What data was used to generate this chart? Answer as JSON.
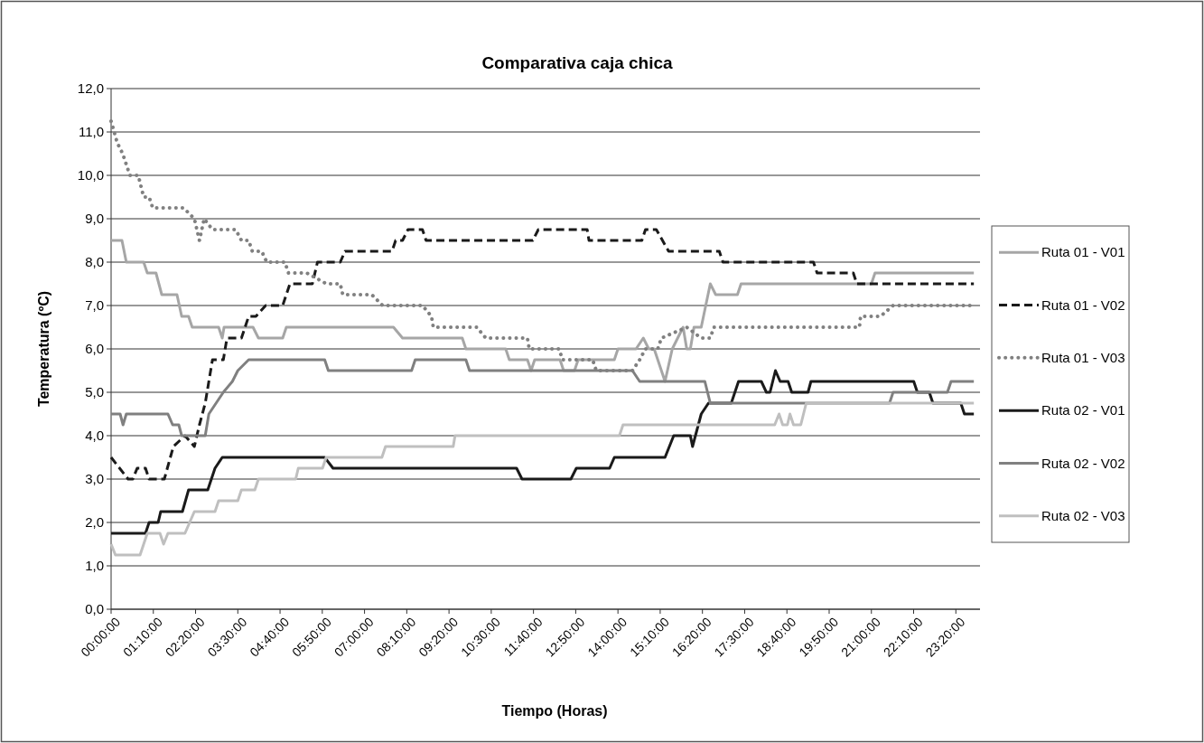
{
  "chart_data": {
    "type": "line",
    "title": "Comparativa caja chica",
    "xlabel": "Tiempo (Horas)",
    "ylabel": "Temperatura (ºC)",
    "xlim": [
      0,
      24
    ],
    "ylim": [
      0,
      12
    ],
    "xticks": [
      {
        "value": 0,
        "label": "00:00:00"
      },
      {
        "value": 1.1667,
        "label": "01:10:00"
      },
      {
        "value": 2.3333,
        "label": "02:20:00"
      },
      {
        "value": 3.5,
        "label": "03:30:00"
      },
      {
        "value": 4.6667,
        "label": "04:40:00"
      },
      {
        "value": 5.8333,
        "label": "05:50:00"
      },
      {
        "value": 7,
        "label": "07:00:00"
      },
      {
        "value": 8.1667,
        "label": "08:10:00"
      },
      {
        "value": 9.3333,
        "label": "09:20:00"
      },
      {
        "value": 10.5,
        "label": "10:30:00"
      },
      {
        "value": 11.6667,
        "label": "11:40:00"
      },
      {
        "value": 12.8333,
        "label": "12:50:00"
      },
      {
        "value": 14,
        "label": "14:00:00"
      },
      {
        "value": 15.1667,
        "label": "15:10:00"
      },
      {
        "value": 16.3333,
        "label": "16:20:00"
      },
      {
        "value": 17.5,
        "label": "17:30:00"
      },
      {
        "value": 18.6667,
        "label": "18:40:00"
      },
      {
        "value": 19.8333,
        "label": "19:50:00"
      },
      {
        "value": 21,
        "label": "21:00:00"
      },
      {
        "value": 22.1667,
        "label": "22:10:00"
      },
      {
        "value": 23.3333,
        "label": "23:20:00"
      }
    ],
    "yticks": [
      {
        "value": 0,
        "label": "0,0"
      },
      {
        "value": 1,
        "label": "1,0"
      },
      {
        "value": 2,
        "label": "2,0"
      },
      {
        "value": 3,
        "label": "3,0"
      },
      {
        "value": 4,
        "label": "4,0"
      },
      {
        "value": 5,
        "label": "5,0"
      },
      {
        "value": 6,
        "label": "6,0"
      },
      {
        "value": 7,
        "label": "7,0"
      },
      {
        "value": 8,
        "label": "8,0"
      },
      {
        "value": 9,
        "label": "9,0"
      },
      {
        "value": 10,
        "label": "10,0"
      },
      {
        "value": 11,
        "label": "11,0"
      },
      {
        "value": 12,
        "label": "12,0"
      }
    ],
    "grid": "y",
    "legend": "right",
    "marker": "none",
    "series": [
      {
        "name": "Ruta 01 - V01",
        "color": "#a6a6a6",
        "line_style": "solid",
        "x": [
          0,
          0.3,
          0.42,
          0.9,
          1.0,
          1.24,
          1.4,
          1.82,
          1.95,
          2.14,
          2.24,
          2.97,
          3.07,
          3.12,
          3.92,
          4.07,
          4.74,
          4.84,
          7.8,
          8.05,
          9.7,
          9.8,
          10.9,
          11.0,
          11.5,
          11.6,
          11.7,
          12.4,
          12.5,
          12.8,
          12.9,
          13.9,
          14.0,
          14.5,
          14.7,
          14.85,
          15.0,
          15.3,
          15.5,
          15.8,
          15.9,
          16.0,
          16.1,
          16.3,
          16.55,
          16.7,
          17.3,
          17.4,
          21.0,
          21.1,
          23.83
        ],
        "values": [
          8.5,
          8.5,
          8.0,
          8.0,
          7.75,
          7.75,
          7.25,
          7.25,
          6.75,
          6.75,
          6.5,
          6.5,
          6.25,
          6.5,
          6.5,
          6.25,
          6.25,
          6.5,
          6.5,
          6.25,
          6.25,
          6.0,
          6.0,
          5.75,
          5.75,
          5.5,
          5.75,
          5.75,
          5.5,
          5.5,
          5.75,
          5.75,
          6.0,
          6.0,
          6.25,
          6.0,
          6.0,
          5.25,
          6.0,
          6.5,
          6.0,
          6.0,
          6.5,
          6.5,
          7.5,
          7.25,
          7.25,
          7.5,
          7.5,
          7.75,
          7.75
        ]
      },
      {
        "name": "Ruta 01 - V02",
        "color": "#1a1a1a",
        "line_style": "dashed",
        "x": [
          0,
          0.47,
          0.6,
          0.72,
          0.95,
          1.05,
          1.47,
          1.72,
          2.04,
          2.3,
          2.44,
          2.6,
          2.8,
          3.1,
          3.2,
          3.6,
          3.8,
          4.0,
          4.27,
          4.74,
          4.94,
          5.56,
          5.7,
          6.33,
          6.46,
          7.76,
          7.86,
          8.05,
          8.2,
          8.6,
          8.7,
          11.65,
          11.8,
          13.15,
          13.2,
          14.66,
          14.76,
          15.06,
          15.4,
          16.8,
          16.9,
          19.4,
          19.5,
          20.5,
          20.6,
          23.83
        ],
        "values": [
          3.5,
          3.0,
          3.0,
          3.25,
          3.25,
          3.0,
          3.0,
          3.75,
          4.0,
          3.75,
          4.25,
          4.75,
          5.75,
          5.75,
          6.25,
          6.25,
          6.75,
          6.75,
          7.0,
          7.0,
          7.5,
          7.5,
          8.0,
          8.0,
          8.25,
          8.25,
          8.5,
          8.5,
          8.75,
          8.75,
          8.5,
          8.5,
          8.75,
          8.75,
          8.5,
          8.5,
          8.75,
          8.75,
          8.25,
          8.25,
          8.0,
          8.0,
          7.75,
          7.75,
          7.5,
          7.5
        ]
      },
      {
        "name": "Ruta 01 - V03",
        "color": "#808080",
        "line_style": "dotted",
        "x": [
          0,
          0.17,
          0.32,
          0.52,
          0.75,
          0.9,
          1.05,
          1.15,
          2.0,
          2.3,
          2.44,
          2.57,
          2.8,
          3.44,
          3.6,
          3.8,
          3.9,
          4.16,
          4.3,
          4.8,
          4.9,
          5.4,
          5.95,
          6.33,
          6.4,
          7.2,
          7.5,
          8.6,
          8.85,
          8.9,
          10.1,
          10.35,
          11.5,
          11.55,
          12.37,
          12.47,
          13.3,
          13.4,
          14.4,
          14.6,
          14.76,
          15.1,
          15.2,
          15.9,
          16.3,
          16.55,
          16.65,
          20.67,
          20.7,
          21.25,
          21.6,
          23.83
        ],
        "values": [
          11.25,
          10.75,
          10.5,
          10.0,
          10.0,
          9.5,
          9.5,
          9.25,
          9.25,
          9.0,
          8.5,
          9.0,
          8.75,
          8.75,
          8.5,
          8.5,
          8.25,
          8.25,
          8.0,
          8.0,
          7.75,
          7.75,
          7.5,
          7.5,
          7.25,
          7.25,
          7.0,
          7.0,
          6.75,
          6.5,
          6.5,
          6.25,
          6.25,
          6.0,
          6.0,
          5.75,
          5.75,
          5.5,
          5.5,
          5.75,
          6.0,
          6.0,
          6.25,
          6.5,
          6.25,
          6.25,
          6.5,
          6.5,
          6.75,
          6.75,
          7.0,
          7.0
        ]
      },
      {
        "name": "Ruta 02 - V01",
        "color": "#1a1a1a",
        "line_style": "solid",
        "x": [
          0,
          0.95,
          1.05,
          1.3,
          1.37,
          1.97,
          2.14,
          2.67,
          2.87,
          3.07,
          5.9,
          6.13,
          11.2,
          11.35,
          12.7,
          12.85,
          13.77,
          13.9,
          15.3,
          15.54,
          16.0,
          16.06,
          16.3,
          16.5,
          17.13,
          17.33,
          17.96,
          18.1,
          18.2,
          18.35,
          18.48,
          18.7,
          18.8,
          19.25,
          19.33,
          22.17,
          22.27,
          22.6,
          22.7,
          23.47,
          23.57,
          23.83
        ],
        "values": [
          1.75,
          1.75,
          2.0,
          2.0,
          2.25,
          2.25,
          2.75,
          2.75,
          3.25,
          3.5,
          3.5,
          3.25,
          3.25,
          3.0,
          3.0,
          3.25,
          3.25,
          3.5,
          3.5,
          4.0,
          4.0,
          3.75,
          4.5,
          4.75,
          4.75,
          5.25,
          5.25,
          5.0,
          5.0,
          5.5,
          5.25,
          5.25,
          5.0,
          5.0,
          5.25,
          5.25,
          5.0,
          5.0,
          4.75,
          4.75,
          4.5,
          4.5
        ]
      },
      {
        "name": "Ruta 02 - V02",
        "color": "#808080",
        "line_style": "solid",
        "x": [
          0,
          0.25,
          0.33,
          0.42,
          1.57,
          1.7,
          1.87,
          1.95,
          2.6,
          2.7,
          3.1,
          3.35,
          3.5,
          3.8,
          5.9,
          6.0,
          8.3,
          8.4,
          9.8,
          9.9,
          14.4,
          14.6,
          16.4,
          16.55,
          21.5,
          21.6,
          23.1,
          23.2,
          23.83
        ],
        "values": [
          4.5,
          4.5,
          4.25,
          4.5,
          4.5,
          4.25,
          4.25,
          4.0,
          4.0,
          4.5,
          5.0,
          5.25,
          5.5,
          5.75,
          5.75,
          5.5,
          5.5,
          5.75,
          5.75,
          5.5,
          5.5,
          5.25,
          5.25,
          4.75,
          4.75,
          5.0,
          5.0,
          5.25,
          5.25
        ]
      },
      {
        "name": "Ruta 02 - V03",
        "color": "#bfbfbf",
        "line_style": "solid",
        "x": [
          0,
          0.12,
          0.8,
          0.9,
          1.0,
          1.35,
          1.45,
          1.57,
          2.04,
          2.17,
          2.3,
          2.87,
          2.97,
          3.5,
          3.6,
          3.97,
          4.07,
          5.1,
          5.17,
          5.84,
          5.94,
          7.48,
          7.58,
          9.45,
          9.5,
          14.04,
          14.14,
          18.33,
          18.45,
          18.55,
          18.68,
          18.75,
          18.85,
          19.05,
          19.2,
          23.83
        ],
        "values": [
          1.5,
          1.25,
          1.25,
          1.5,
          1.75,
          1.75,
          1.5,
          1.75,
          1.75,
          2.0,
          2.25,
          2.25,
          2.5,
          2.5,
          2.75,
          2.75,
          3.0,
          3.0,
          3.25,
          3.25,
          3.5,
          3.5,
          3.75,
          3.75,
          4.0,
          4.0,
          4.25,
          4.25,
          4.5,
          4.25,
          4.25,
          4.5,
          4.25,
          4.25,
          4.75,
          4.75
        ]
      }
    ]
  }
}
